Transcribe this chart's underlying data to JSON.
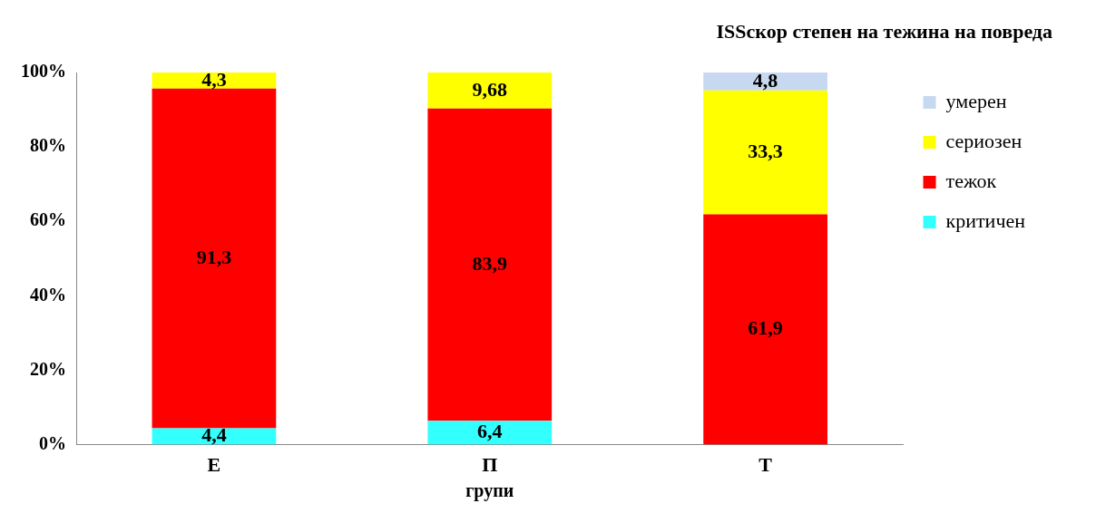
{
  "chart_data": {
    "type": "bar",
    "stacked": true,
    "legend_title": "ISSскор степен на тежина на повреда",
    "xlabel": "групи",
    "categories": [
      "Е",
      "П",
      "Т"
    ],
    "series": [
      {
        "name": "критичен",
        "color": "#33ffff",
        "values": [
          4.4,
          6.4,
          null
        ],
        "value_labels": [
          "4,4",
          "6,4",
          null
        ]
      },
      {
        "name": "тежок",
        "color": "#ff0000",
        "values": [
          91.3,
          83.9,
          61.9
        ],
        "value_labels": [
          "91,3",
          "83,9",
          "61,9"
        ]
      },
      {
        "name": "сериозен",
        "color": "#ffff00",
        "values": [
          4.3,
          9.68,
          33.3
        ],
        "value_labels": [
          "4,3",
          "9,68",
          "33,3"
        ]
      },
      {
        "name": "умерен",
        "color": "#c6d9f1",
        "values": [
          null,
          null,
          4.8
        ],
        "value_labels": [
          null,
          null,
          "4,8"
        ]
      }
    ],
    "ylim": [
      0,
      100
    ],
    "yticks": [
      {
        "value": 0,
        "label": "0%"
      },
      {
        "value": 20,
        "label": "20%"
      },
      {
        "value": 40,
        "label": "40%"
      },
      {
        "value": 60,
        "label": "60%"
      },
      {
        "value": 80,
        "label": "80%"
      },
      {
        "value": 100,
        "label": "100%"
      }
    ],
    "legend": "right",
    "grid": false
  }
}
